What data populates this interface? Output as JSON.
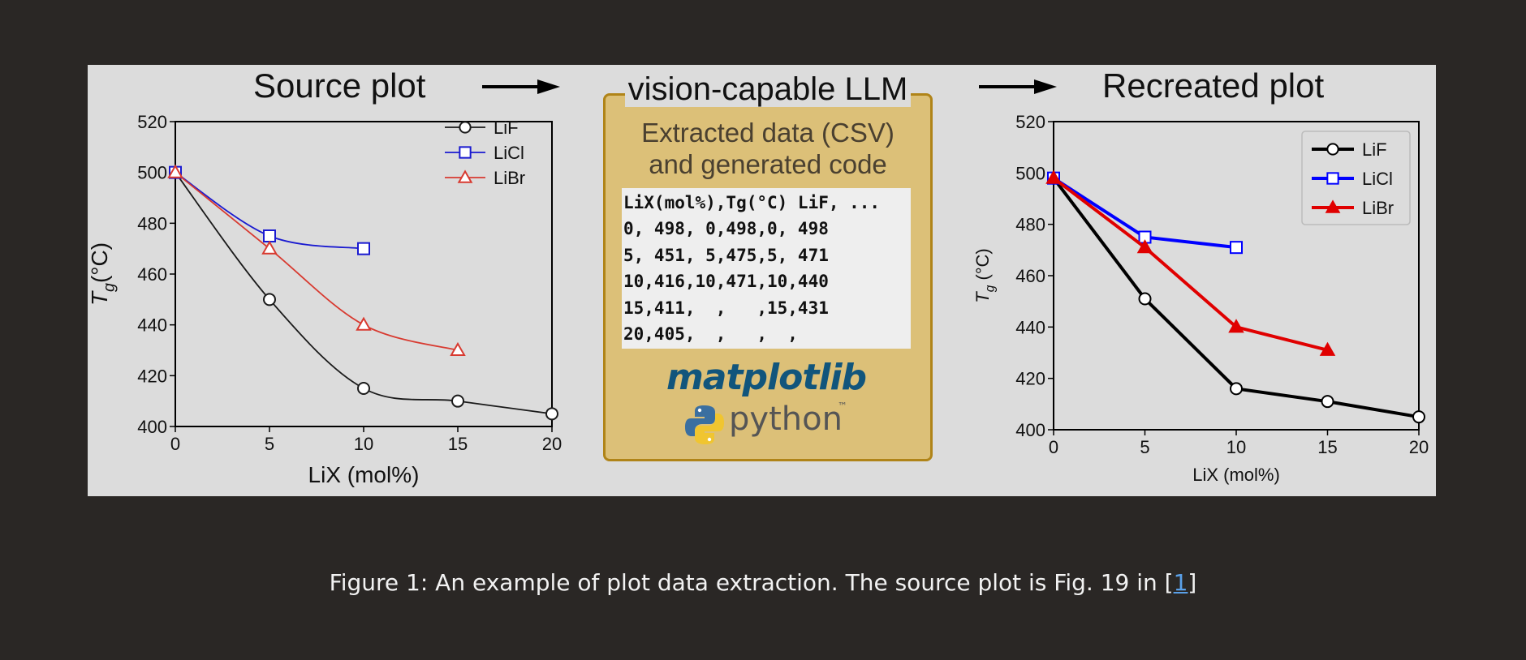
{
  "headings": {
    "source": "Source plot",
    "llm": "vision-capable LLM",
    "recreated": "Recreated plot"
  },
  "llm_box": {
    "line1": "Extracted data (CSV)",
    "line2": "and generated code",
    "csv_lines": [
      "LiX(mol%),Tg(°C) LiF, ...",
      "0, 498, 0,498,0, 498",
      "5, 451, 5,475,5, 471",
      "10,416,10,471,10,440",
      "15,411,  ,   ,15,431",
      "20,405,  ,   ,  ,"
    ],
    "logo_matplotlib": "matplotlib",
    "logo_python": "python",
    "logo_tm": "™"
  },
  "caption": {
    "text": "Figure 1: An example of plot data extraction. The source plot is Fig. 19 in [",
    "ref": "1",
    "close": "]"
  },
  "colors": {
    "LiF": "#000000",
    "LiCl": "#0000ff",
    "LiBr": "#e00000",
    "source_LiF": "#1a1a1a",
    "source_LiCl": "#1a1ad0",
    "source_LiBr": "#d83a30"
  },
  "chart_data": [
    {
      "type": "line",
      "xlabel": "LiX (mol%)",
      "ylabel_main": "T",
      "ylabel_sub": "g",
      "ylabel_rest": "(°C)",
      "xlim": [
        0,
        20
      ],
      "ylim": [
        400,
        520
      ],
      "xticks": [
        "0",
        "5",
        "10",
        "15",
        "20"
      ],
      "yticks": [
        "400",
        "420",
        "440",
        "460",
        "480",
        "500",
        "520"
      ],
      "legend_position": "top-right",
      "series": [
        {
          "name": "LiF",
          "x": [
            0,
            5,
            10,
            15,
            20
          ],
          "y": [
            500,
            450,
            415,
            410,
            405
          ],
          "marker": "circle-open"
        },
        {
          "name": "LiCl",
          "x": [
            0,
            5,
            10
          ],
          "y": [
            500,
            475,
            470
          ],
          "marker": "square-open"
        },
        {
          "name": "LiBr",
          "x": [
            0,
            5,
            10,
            15
          ],
          "y": [
            500,
            470,
            440,
            430
          ],
          "marker": "triangle-open"
        }
      ]
    },
    {
      "type": "line",
      "xlabel": "LiX (mol%)",
      "ylabel_main": "T",
      "ylabel_sub": "g",
      "ylabel_rest": " (°C)",
      "xlim": [
        0,
        20
      ],
      "ylim": [
        400,
        520
      ],
      "xticks": [
        "0",
        "5",
        "10",
        "15",
        "20"
      ],
      "yticks": [
        "400",
        "420",
        "440",
        "460",
        "480",
        "500",
        "520"
      ],
      "legend_position": "top-right",
      "series": [
        {
          "name": "LiF",
          "x": [
            0,
            5,
            10,
            15,
            20
          ],
          "y": [
            498,
            451,
            416,
            411,
            405
          ],
          "marker": "circle-open"
        },
        {
          "name": "LiCl",
          "x": [
            0,
            5,
            10
          ],
          "y": [
            498,
            475,
            471
          ],
          "marker": "square-open"
        },
        {
          "name": "LiBr",
          "x": [
            0,
            5,
            10,
            15
          ],
          "y": [
            498,
            471,
            440,
            431
          ],
          "marker": "triangle-filled"
        }
      ]
    }
  ]
}
